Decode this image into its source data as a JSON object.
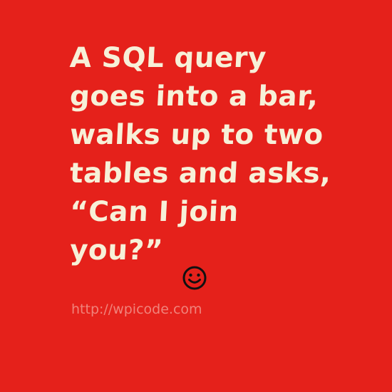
{
  "quote": {
    "lines": [
      "A SQL query",
      "goes into a bar,",
      "walks up to two",
      "tables and asks,",
      "“Can I join",
      "you?”"
    ]
  },
  "footer": {
    "url": "http://wpicode.com"
  },
  "colors": {
    "background": "#e5211b",
    "text": "#f7f0d8",
    "url": "#f0837b",
    "emoji": "#111111"
  },
  "icons": {
    "emoji": "smiley-face-icon"
  }
}
